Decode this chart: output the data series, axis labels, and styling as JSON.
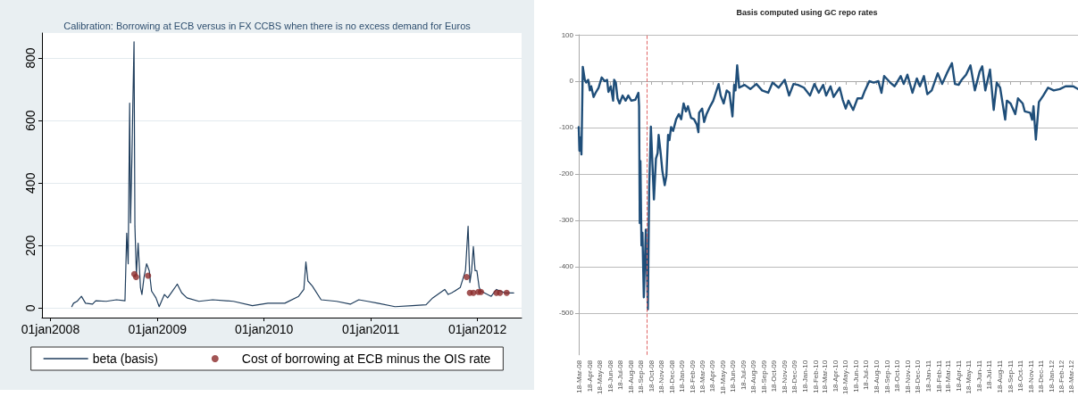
{
  "chart_data": [
    {
      "type": "line",
      "title": "Calibration: Borrowing at ECB versus in FX CCBS when there is no excess demand for Euros",
      "xlim": [
        "2007-12-03",
        "2012-05-31"
      ],
      "xticks": [
        {
          "value": "2008-01-01",
          "label": "01jan2008"
        },
        {
          "value": "2009-01-01",
          "label": "01jan2009"
        },
        {
          "value": "2010-01-01",
          "label": "01jan2010"
        },
        {
          "value": "2011-01-01",
          "label": "01jan2011"
        },
        {
          "value": "2012-01-01",
          "label": "01jan2012"
        }
      ],
      "ylim": [
        -30,
        880
      ],
      "yticks": [
        0,
        200,
        400,
        600,
        800
      ],
      "grid": "y",
      "legend": "bottom",
      "series": [
        {
          "name": "beta (basis)",
          "color": "#1f3d5c",
          "marker": "none",
          "x": [
            "2008-03-14",
            "2008-03-20",
            "2008-04-01",
            "2008-04-16",
            "2008-04-30",
            "2008-05-24",
            "2008-06-04",
            "2008-07-10",
            "2008-08-14",
            "2008-09-12",
            "2008-09-18",
            "2008-09-23",
            "2008-09-28",
            "2008-10-01",
            "2008-10-06",
            "2008-10-09",
            "2008-10-13",
            "2008-10-16",
            "2008-10-21",
            "2008-10-27",
            "2008-11-04",
            "2008-11-09",
            "2008-11-16",
            "2008-11-25",
            "2008-12-04",
            "2008-12-12",
            "2008-12-27",
            "2009-01-07",
            "2009-01-25",
            "2009-02-05",
            "2009-02-17",
            "2009-03-10",
            "2009-03-25",
            "2009-04-12",
            "2009-05-23",
            "2009-07-09",
            "2009-09-18",
            "2009-11-22",
            "2010-01-14",
            "2010-03-13",
            "2010-04-29",
            "2010-05-17",
            "2010-05-24",
            "2010-05-31",
            "2010-06-15",
            "2010-07-15",
            "2010-09-06",
            "2010-10-23",
            "2010-11-21",
            "2010-12-21",
            "2011-01-25",
            "2011-03-25",
            "2011-05-23",
            "2011-07-09",
            "2011-08-01",
            "2011-09-11",
            "2011-09-23",
            "2011-10-05",
            "2011-11-03",
            "2011-11-21",
            "2011-11-30",
            "2011-12-06",
            "2011-12-12",
            "2011-12-18",
            "2011-12-24",
            "2011-12-30",
            "2012-01-07",
            "2012-01-13",
            "2012-02-17",
            "2012-03-06",
            "2012-04-04",
            "2012-05-04"
          ],
          "values": [
            5,
            16,
            22,
            38,
            16,
            13,
            24,
            22,
            27,
            24,
            240,
            142,
            656,
            273,
            492,
            656,
            852,
            262,
            109,
            208,
            66,
            44,
            98,
            142,
            120,
            55,
            33,
            5,
            44,
            33,
            49,
            77,
            49,
            33,
            22,
            27,
            22,
            8,
            16,
            16,
            38,
            60,
            148,
            87,
            71,
            27,
            22,
            13,
            27,
            22,
            16,
            5,
            8,
            11,
            33,
            60,
            44,
            49,
            66,
            120,
            262,
            82,
            120,
            197,
            120,
            120,
            66,
            55,
            38,
            60,
            49,
            49
          ]
        },
        {
          "name": "Cost of borrowing at ECB minus the OIS rate",
          "type": "scatter",
          "color": "#8b2b2b",
          "marker": "circle",
          "x": [
            "2008-10-14",
            "2008-10-20",
            "2008-11-30",
            "2011-11-25",
            "2011-12-06",
            "2011-12-18",
            "2012-01-04",
            "2012-01-13",
            "2012-03-06",
            "2012-03-18",
            "2012-04-10"
          ],
          "values": [
            109,
            100,
            104,
            100,
            49,
            49,
            52,
            52,
            49,
            49,
            49
          ]
        }
      ]
    },
    {
      "type": "line",
      "title": "Basis computed using GC repo rates",
      "xlim": [
        "2008-03-17",
        "2012-04-06"
      ],
      "xticks": [
        {
          "value": "2008-03-18",
          "label": "18-Mar-08"
        },
        {
          "value": "2008-04-18",
          "label": "18-Apr-08"
        },
        {
          "value": "2008-05-18",
          "label": "18-May-08"
        },
        {
          "value": "2008-06-18",
          "label": "18-Jun-08"
        },
        {
          "value": "2008-07-18",
          "label": "18-Jul-08"
        },
        {
          "value": "2008-08-18",
          "label": "18-Aug-08"
        },
        {
          "value": "2008-09-18",
          "label": "18-Sep-08"
        },
        {
          "value": "2008-10-18",
          "label": "18-Oct-08"
        },
        {
          "value": "2008-11-18",
          "label": "18-Nov-08"
        },
        {
          "value": "2008-12-18",
          "label": "18-Dec-08"
        },
        {
          "value": "2009-01-18",
          "label": "18-Jan-09"
        },
        {
          "value": "2009-02-18",
          "label": "18-Feb-09"
        },
        {
          "value": "2009-03-18",
          "label": "18-Mar-09"
        },
        {
          "value": "2009-04-18",
          "label": "18-Apr-09"
        },
        {
          "value": "2009-05-18",
          "label": "18-May-09"
        },
        {
          "value": "2009-06-18",
          "label": "18-Jun-09"
        },
        {
          "value": "2009-07-18",
          "label": "18-Jul-09"
        },
        {
          "value": "2009-08-18",
          "label": "18-Aug-09"
        },
        {
          "value": "2009-09-18",
          "label": "18-Sep-09"
        },
        {
          "value": "2009-10-18",
          "label": "18-Oct-09"
        },
        {
          "value": "2009-11-18",
          "label": "18-Nov-09"
        },
        {
          "value": "2009-12-18",
          "label": "18-Dec-09"
        },
        {
          "value": "2010-01-18",
          "label": "18-Jan-10"
        },
        {
          "value": "2010-02-18",
          "label": "18-Feb-10"
        },
        {
          "value": "2010-03-18",
          "label": "18-Mar-10"
        },
        {
          "value": "2010-04-18",
          "label": "18-Apr-10"
        },
        {
          "value": "2010-05-18",
          "label": "18-May-10"
        },
        {
          "value": "2010-06-18",
          "label": "18-Jun-10"
        },
        {
          "value": "2010-07-18",
          "label": "18-Jul-10"
        },
        {
          "value": "2010-08-18",
          "label": "18-Aug-10"
        },
        {
          "value": "2010-09-18",
          "label": "18-Sep-10"
        },
        {
          "value": "2010-10-18",
          "label": "18-Oct-10"
        },
        {
          "value": "2010-11-18",
          "label": "18-Nov-10"
        },
        {
          "value": "2010-12-18",
          "label": "18-Dec-10"
        },
        {
          "value": "2011-01-18",
          "label": "18-Jan-11"
        },
        {
          "value": "2011-02-18",
          "label": "18-Feb-11"
        },
        {
          "value": "2011-03-18",
          "label": "18-Mar-11"
        },
        {
          "value": "2011-04-18",
          "label": "18-Apr-11"
        },
        {
          "value": "2011-05-18",
          "label": "18-May-11"
        },
        {
          "value": "2011-06-18",
          "label": "18-Jun-11"
        },
        {
          "value": "2011-07-18",
          "label": "18-Jul-11"
        },
        {
          "value": "2011-08-18",
          "label": "18-Aug-11"
        },
        {
          "value": "2011-09-18",
          "label": "18-Sep-11"
        },
        {
          "value": "2011-10-18",
          "label": "18-Oct-11"
        },
        {
          "value": "2011-11-18",
          "label": "18-Nov-11"
        },
        {
          "value": "2011-12-18",
          "label": "18-Dec-11"
        },
        {
          "value": "2012-01-18",
          "label": "18-Jan-12"
        },
        {
          "value": "2012-02-18",
          "label": "18-Feb-12"
        },
        {
          "value": "2012-03-18",
          "label": "18-Mar-12"
        }
      ],
      "ylim": [
        -590,
        100
      ],
      "yticks": [
        -500,
        -400,
        -300,
        -200,
        -100,
        0,
        100
      ],
      "grid": "y",
      "ref_lines": [
        {
          "axis": "x",
          "value": "2008-10-06",
          "color": "#e06666",
          "line_style": "dashed"
        }
      ],
      "series": [
        {
          "color": "#1f4e79",
          "marker": "none",
          "x": [
            "2008-03-17",
            "2008-03-19",
            "2008-03-21",
            "2008-03-25",
            "2008-03-29",
            "2008-04-04",
            "2008-04-08",
            "2008-04-14",
            "2008-04-19",
            "2008-04-23",
            "2008-04-30",
            "2008-05-06",
            "2008-05-15",
            "2008-05-24",
            "2008-06-02",
            "2008-06-09",
            "2008-06-13",
            "2008-06-20",
            "2008-06-27",
            "2008-06-30",
            "2008-07-05",
            "2008-07-10",
            "2008-07-16",
            "2008-07-25",
            "2008-08-03",
            "2008-08-11",
            "2008-08-20",
            "2008-09-01",
            "2008-09-10",
            "2008-09-12",
            "2008-09-14",
            "2008-09-16",
            "2008-09-19",
            "2008-09-22",
            "2008-09-26",
            "2008-10-02",
            "2008-10-08",
            "2008-10-12",
            "2008-10-17",
            "2008-10-26",
            "2008-11-01",
            "2008-11-06",
            "2008-11-09",
            "2008-11-15",
            "2008-11-20",
            "2008-11-27",
            "2008-12-02",
            "2008-12-07",
            "2008-12-11",
            "2008-12-16",
            "2008-12-22",
            "2008-12-31",
            "2009-01-08",
            "2009-01-15",
            "2009-01-22",
            "2009-01-29",
            "2009-02-04",
            "2009-02-13",
            "2009-02-22",
            "2009-03-02",
            "2009-03-07",
            "2009-03-09",
            "2009-03-18",
            "2009-03-24",
            "2009-03-31",
            "2009-04-11",
            "2009-04-20",
            "2009-05-06",
            "2009-05-12",
            "2009-05-21",
            "2009-05-30",
            "2009-06-07",
            "2009-06-16",
            "2009-06-21",
            "2009-06-25",
            "2009-06-30",
            "2009-07-06",
            "2009-07-22",
            "2009-08-08",
            "2009-08-26",
            "2009-09-12",
            "2009-09-30",
            "2009-10-13",
            "2009-10-31",
            "2009-11-18",
            "2009-12-01",
            "2009-12-14",
            "2009-12-27",
            "2010-01-14",
            "2010-02-01",
            "2010-02-14",
            "2010-02-27",
            "2010-03-12",
            "2010-03-21",
            "2010-04-03",
            "2010-04-12",
            "2010-04-30",
            "2010-05-09",
            "2010-05-18",
            "2010-05-26",
            "2010-06-09",
            "2010-06-22",
            "2010-07-05",
            "2010-07-14",
            "2010-07-27",
            "2010-08-09",
            "2010-08-23",
            "2010-09-01",
            "2010-09-09",
            "2010-09-27",
            "2010-10-10",
            "2010-10-28",
            "2010-11-06",
            "2010-11-17",
            "2010-12-02",
            "2010-12-15",
            "2010-12-24",
            "2011-01-05",
            "2011-01-15",
            "2011-01-28",
            "2011-02-15",
            "2011-02-28",
            "2011-03-14",
            "2011-03-29",
            "2011-04-07",
            "2011-04-18",
            "2011-04-27",
            "2011-05-10",
            "2011-05-23",
            "2011-06-05",
            "2011-06-19",
            "2011-06-27",
            "2011-07-06",
            "2011-07-20",
            "2011-07-31",
            "2011-08-09",
            "2011-08-19",
            "2011-09-03",
            "2011-09-08",
            "2011-09-19",
            "2011-10-03",
            "2011-10-11",
            "2011-10-25",
            "2011-10-31",
            "2011-11-16",
            "2011-11-22",
            "2011-11-26",
            "2011-12-03",
            "2011-12-12",
            "2011-12-25",
            "2012-01-08",
            "2012-01-25",
            "2012-02-12",
            "2012-02-29",
            "2012-03-23",
            "2012-04-06"
          ],
          "values": [
            -99,
            -150,
            -121,
            -158,
            31,
            3,
            -3,
            3,
            -20,
            -11,
            -34,
            -25,
            -14,
            8,
            0,
            3,
            -23,
            -11,
            -42,
            3,
            -3,
            -37,
            -48,
            -31,
            -42,
            -31,
            -42,
            -40,
            -25,
            -54,
            -306,
            -172,
            -354,
            -327,
            -466,
            -320,
            -492,
            -227,
            -98,
            -255,
            -167,
            -155,
            -116,
            -155,
            -193,
            -224,
            -204,
            -116,
            -127,
            -99,
            -107,
            -82,
            -71,
            -82,
            -48,
            -65,
            -54,
            -79,
            -82,
            -93,
            -110,
            -68,
            -59,
            -88,
            -71,
            -54,
            -42,
            -6,
            -31,
            -48,
            -20,
            -25,
            -76,
            -8,
            -20,
            34,
            -14,
            -8,
            -17,
            -6,
            -20,
            -25,
            -3,
            -14,
            3,
            -31,
            -6,
            -8,
            -14,
            -31,
            -6,
            -25,
            -8,
            -31,
            -11,
            -34,
            -14,
            -40,
            -59,
            -42,
            -62,
            -37,
            -37,
            -20,
            0,
            -3,
            0,
            -25,
            11,
            -3,
            -11,
            11,
            -6,
            14,
            -25,
            6,
            -11,
            11,
            -28,
            -20,
            17,
            -6,
            17,
            39,
            -6,
            -8,
            3,
            14,
            34,
            -20,
            20,
            32,
            -20,
            25,
            -62,
            -3,
            -14,
            -83,
            -42,
            -48,
            -71,
            -37,
            -48,
            -65,
            -68,
            -83,
            -54,
            -126,
            -45,
            -31,
            -14,
            -20,
            -17,
            -11,
            -11,
            -17
          ]
        }
      ]
    }
  ]
}
